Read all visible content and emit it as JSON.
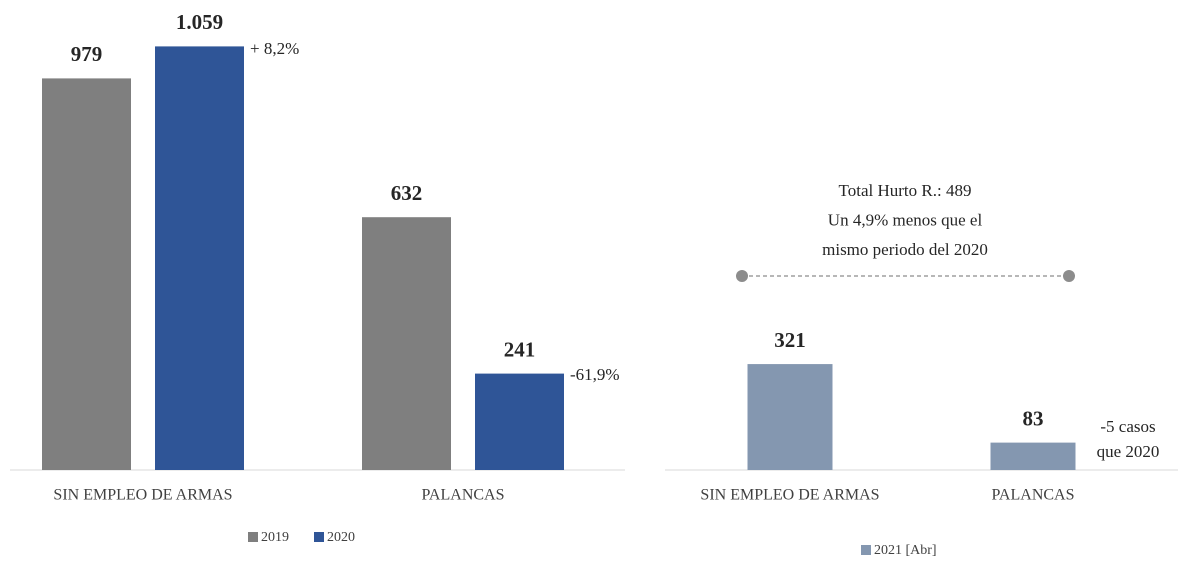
{
  "chart_data": [
    {
      "type": "bar",
      "categories": [
        "SIN EMPLEO DE ARMAS",
        "PALANCAS"
      ],
      "series": [
        {
          "name": "2019",
          "color": "#7f7f7f",
          "values": [
            979,
            632
          ]
        },
        {
          "name": "2020",
          "color": "#2f5597",
          "values": [
            1059,
            241
          ],
          "value_labels": [
            "1.059",
            "241"
          ]
        }
      ],
      "annotations": [
        "+ 8,2%",
        "-61,9%"
      ],
      "ylim": [
        0,
        1060
      ]
    },
    {
      "type": "bar",
      "categories": [
        "SIN EMPLEO DE ARMAS",
        "PALANCAS"
      ],
      "series": [
        {
          "name": "2021 [Abr]",
          "color": "#8497b0",
          "values": [
            321,
            83
          ]
        }
      ],
      "note": [
        "Total Hurto R.: 489",
        "Un 4,9% menos que el",
        "mismo periodo del 2020"
      ],
      "annotations": [
        "-5 casos",
        "que 2020"
      ],
      "ylim": [
        0,
        1285
      ]
    }
  ]
}
